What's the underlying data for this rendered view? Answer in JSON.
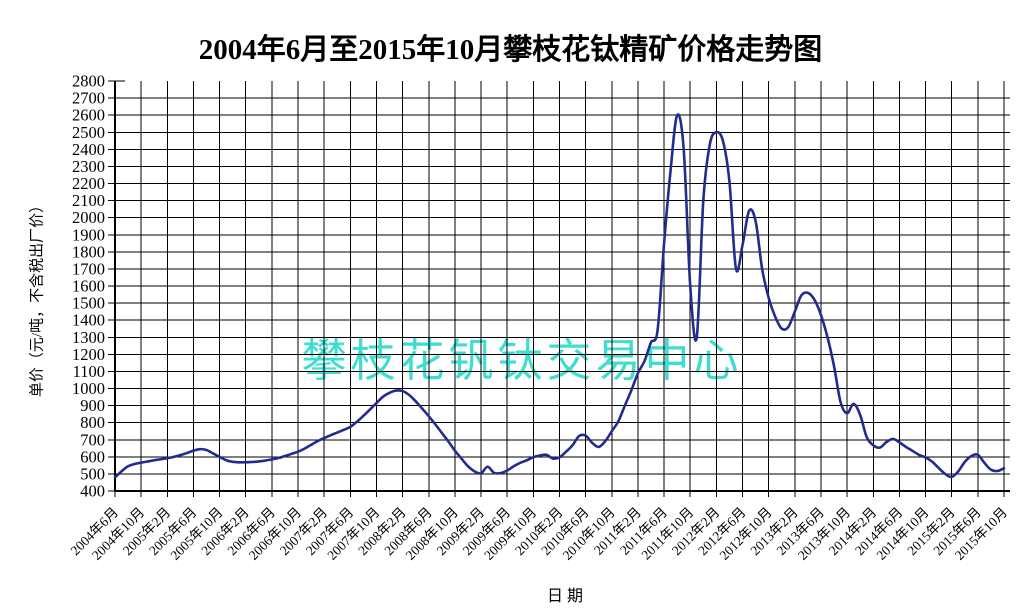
{
  "title": "2004年6月至2015年10月攀枝花钛精矿价格走势图",
  "watermark": "攀枝花钒钛交易中心",
  "chart_data": {
    "type": "line",
    "title": "2004年6月至2015年10月攀枝花钛精矿价格走势图",
    "xlabel": "日期",
    "ylabel": "单价（元/吨，不含税出厂价）",
    "ylim": [
      400,
      2800
    ],
    "y_tick_step": 100,
    "grid": true,
    "legend": false,
    "x_tick_labels": [
      "2004年6月",
      "2004年10月",
      "2005年2月",
      "2005年6月",
      "2005年10月",
      "2006年2月",
      "2006年6月",
      "2006年10月",
      "2007年2月",
      "2007年6月",
      "2007年10月",
      "2008年2月",
      "2008年6月",
      "2008年10月",
      "2009年2月",
      "2009年6月",
      "2009年10月",
      "2010年2月",
      "2010年6月",
      "2010年10月",
      "2011年2月",
      "2011年6月",
      "2011年10月",
      "2012年2月",
      "2012年6月",
      "2012年10月",
      "2013年2月",
      "2013年6月",
      "2013年10月",
      "2014年2月",
      "2014年6月",
      "2014年10月",
      "2015年2月",
      "2015年6月",
      "2015年10月"
    ],
    "months_between_ticks": 4,
    "y_tick_labels": [
      "400",
      "500",
      "600",
      "700",
      "800",
      "900",
      "1000",
      "1100",
      "1200",
      "1300",
      "1400",
      "1500",
      "1600",
      "1700",
      "1800",
      "1900",
      "2000",
      "2100",
      "2200",
      "2300",
      "2400",
      "2500",
      "2600",
      "2700",
      "2800"
    ],
    "series": [
      {
        "color": "#222C8D",
        "monthly_values": [
          480,
          515,
          545,
          558,
          566,
          573,
          580,
          586,
          592,
          600,
          610,
          622,
          636,
          645,
          640,
          620,
          600,
          580,
          571,
          568,
          568,
          570,
          573,
          578,
          585,
          593,
          605,
          617,
          630,
          648,
          670,
          692,
          710,
          727,
          742,
          758,
          775,
          805,
          840,
          877,
          915,
          952,
          975,
          988,
          985,
          962,
          925,
          882,
          838,
          790,
          740,
          690,
          636,
          590,
          545,
          515,
          504,
          542,
          506,
          505,
          520,
          545,
          565,
          580,
          598,
          608,
          612,
          590,
          597,
          630,
          668,
          722,
          724,
          682,
          658,
          692,
          750,
          808,
          900,
          990,
          1090,
          1160,
          1270,
          1340,
          1850,
          2280,
          2600,
          2400,
          1600,
          1300,
          2100,
          2430,
          2500,
          2450,
          2210,
          1700,
          1840,
          2040,
          1980,
          1700,
          1530,
          1420,
          1350,
          1360,
          1450,
          1545,
          1560,
          1520,
          1430,
          1300,
          1130,
          920,
          855,
          910,
          845,
          715,
          668,
          654,
          686,
          705,
          685,
          658,
          635,
          612,
          596,
          572,
          535,
          500,
          482,
          515,
          570,
          605,
          612,
          565,
          525,
          517,
          533
        ]
      }
    ]
  },
  "colors": {
    "line": "#222C8D",
    "watermark": "#3EDDD1",
    "grid": "#000000",
    "text": "#000000",
    "background": "#FFFFFF"
  }
}
